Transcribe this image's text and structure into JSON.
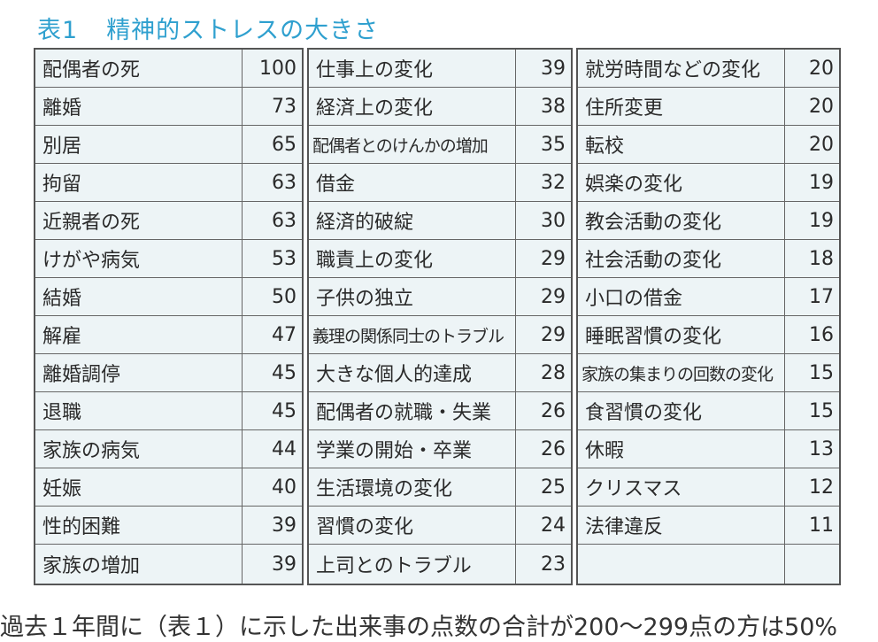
{
  "title": {
    "number": "表1",
    "text": "精神的ストレスの大きさ"
  },
  "columns": [
    [
      {
        "label": "配偶者の死",
        "value": "100"
      },
      {
        "label": "離婚",
        "value": "73"
      },
      {
        "label": "別居",
        "value": "65"
      },
      {
        "label": "拘留",
        "value": "63"
      },
      {
        "label": "近親者の死",
        "value": "63"
      },
      {
        "label": "けがや病気",
        "value": "53"
      },
      {
        "label": "結婚",
        "value": "50"
      },
      {
        "label": "解雇",
        "value": "47"
      },
      {
        "label": "離婚調停",
        "value": "45"
      },
      {
        "label": "退職",
        "value": "45"
      },
      {
        "label": "家族の病気",
        "value": "44"
      },
      {
        "label": "妊娠",
        "value": "40"
      },
      {
        "label": "性的困難",
        "value": "39"
      },
      {
        "label": "家族の増加",
        "value": "39"
      }
    ],
    [
      {
        "label": "仕事上の変化",
        "value": "39"
      },
      {
        "label": "経済上の変化",
        "value": "38"
      },
      {
        "label": "配偶者とのけんかの増加",
        "value": "35"
      },
      {
        "label": "借金",
        "value": "32"
      },
      {
        "label": "経済的破綻",
        "value": "30"
      },
      {
        "label": "職責上の変化",
        "value": "29"
      },
      {
        "label": "子供の独立",
        "value": "29"
      },
      {
        "label": "義理の関係同士のトラブル",
        "value": "29"
      },
      {
        "label": "大きな個人的達成",
        "value": "28"
      },
      {
        "label": "配偶者の就職・失業",
        "value": "26"
      },
      {
        "label": "学業の開始・卒業",
        "value": "26"
      },
      {
        "label": "生活環境の変化",
        "value": "25"
      },
      {
        "label": "習慣の変化",
        "value": "24"
      },
      {
        "label": "上司とのトラブル",
        "value": "23"
      }
    ],
    [
      {
        "label": "就労時間などの変化",
        "value": "20"
      },
      {
        "label": "住所変更",
        "value": "20"
      },
      {
        "label": "転校",
        "value": "20"
      },
      {
        "label": "娯楽の変化",
        "value": "19"
      },
      {
        "label": "教会活動の変化",
        "value": "19"
      },
      {
        "label": "社会活動の変化",
        "value": "18"
      },
      {
        "label": "小口の借金",
        "value": "17"
      },
      {
        "label": "睡眠習慣の変化",
        "value": "16"
      },
      {
        "label": "家族の集まりの回数の変化",
        "value": "15"
      },
      {
        "label": "食習慣の変化",
        "value": "15"
      },
      {
        "label": "休暇",
        "value": "13"
      },
      {
        "label": "クリスマス",
        "value": "12"
      },
      {
        "label": "法律違反",
        "value": "11"
      },
      {
        "label": "",
        "value": ""
      }
    ]
  ],
  "footer": {
    "text": "過去１年間に（表１）に示した出来事の点数の合計が200～299点の方は50%"
  }
}
